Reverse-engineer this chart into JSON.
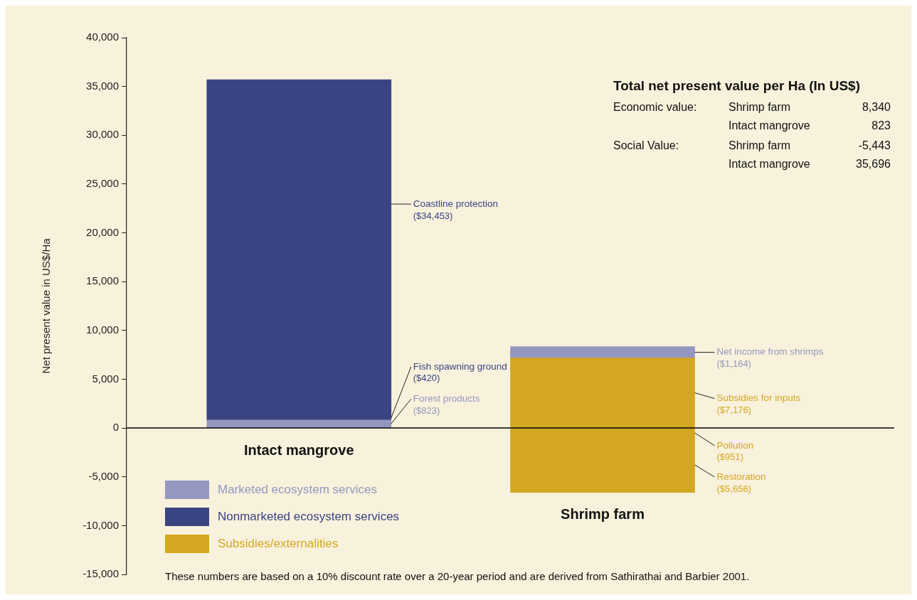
{
  "chart_data": {
    "type": "bar",
    "stacked": true,
    "categories": [
      "Intact mangrove",
      "Shrimp farm"
    ],
    "ylabel": "Net present value in US$/Ha",
    "ylim": [
      -15000,
      40000
    ],
    "yticks": [
      {
        "value": -15000,
        "label": "-15,000"
      },
      {
        "value": -10000,
        "label": "-10,000"
      },
      {
        "value": -5000,
        "label": "-5,000"
      },
      {
        "value": 0,
        "label": "0"
      },
      {
        "value": 5000,
        "label": "5,000"
      },
      {
        "value": 10000,
        "label": "10,000"
      },
      {
        "value": 15000,
        "label": "15,000"
      },
      {
        "value": 20000,
        "label": "20,000"
      },
      {
        "value": 25000,
        "label": "25,000"
      },
      {
        "value": 30000,
        "label": "30,000"
      },
      {
        "value": 35000,
        "label": "35,000"
      },
      {
        "value": 40000,
        "label": "40,000"
      }
    ],
    "series": [
      {
        "name": "Marketed ecosystem services",
        "color": "#9497bf",
        "values": [
          823,
          null
        ],
        "value_labels": [
          "($823)",
          null
        ]
      },
      {
        "name": "Nonmarketed ecosystem services",
        "color": "#3b4483",
        "values": [
          420,
          null
        ],
        "value_labels": [
          "($420)",
          null
        ]
      },
      {
        "name": "Subsidies/externalities",
        "color": "#d3a820",
        "values": [
          null,
          7176
        ],
        "value_labels": [
          null,
          "($7,176)"
        ]
      },
      {
        "color": "#3b4483",
        "values": [
          34453,
          null
        ],
        "value_labels": [
          "($34,453)",
          null
        ]
      },
      {
        "color": "#9497bf",
        "values": [
          null,
          1164
        ],
        "value_labels": [
          null,
          "($1,164)"
        ]
      },
      {
        "color": "#d3a820",
        "values": [
          null,
          -951
        ],
        "value_labels": [
          null,
          "($951)"
        ]
      },
      {
        "color": "#d3a820",
        "values": [
          null,
          -5656
        ],
        "value_labels": [
          null,
          "($5,656)"
        ]
      }
    ],
    "ref_lines": [
      {
        "axis": "y",
        "value": 0,
        "color": "#000000"
      }
    ],
    "legend": "bottom left",
    "annotations": [
      "Forest products",
      "Fish spawning ground",
      "Coastline protection",
      "Subsidies for inputs",
      "Net income from shrimps",
      "Pollution",
      "Restoration",
      "Total net present value per Ha (In US$)",
      "Economic value:",
      "Shrimp farm",
      "8,340",
      "Intact mangrove",
      "823",
      "Social Value:",
      "Shrimp farm",
      "-5,443",
      "Intact mangrove",
      "35,696",
      "These numbers are based on a 10% discount rate over a 20-year period and are derived from Sathirathai and Barbier 2001."
    ]
  }
}
